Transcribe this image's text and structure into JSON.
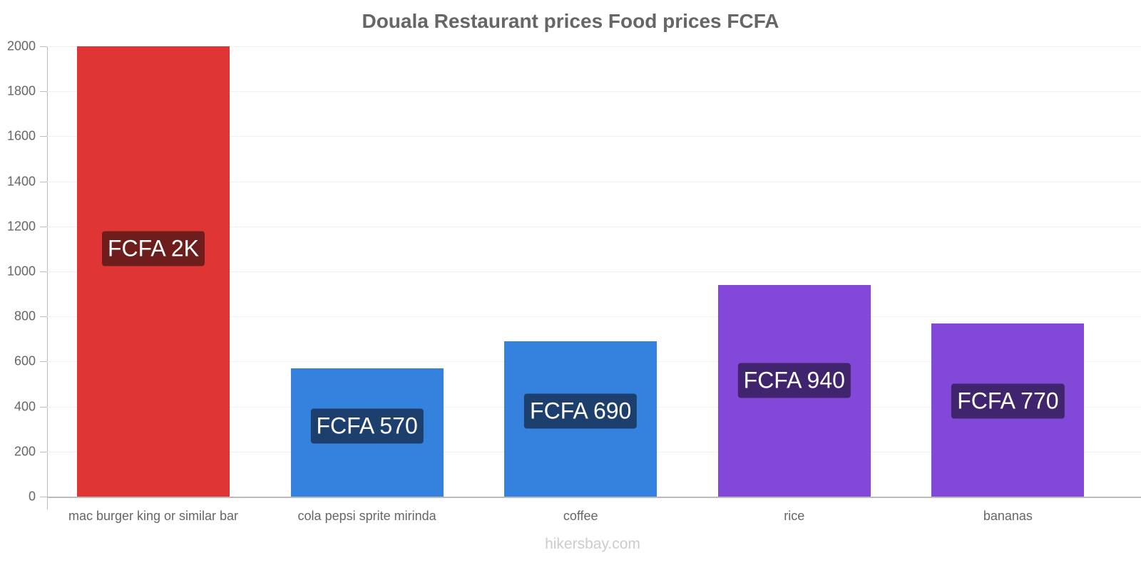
{
  "chart_data": {
    "type": "bar",
    "title": "Douala Restaurant prices Food prices FCFA",
    "xlabel": "",
    "ylabel": "",
    "ylim": [
      0,
      2000
    ],
    "yticks": [
      0,
      200,
      400,
      600,
      800,
      1000,
      1200,
      1400,
      1600,
      1800,
      2000
    ],
    "categories": [
      "mac burger king or similar bar",
      "cola pepsi sprite mirinda",
      "coffee",
      "rice",
      "bananas"
    ],
    "values": [
      2000,
      570,
      690,
      940,
      770
    ],
    "data_labels": [
      "FCFA 2K",
      "FCFA 570",
      "FCFA 690",
      "FCFA 940",
      "FCFA 770"
    ],
    "bar_colors": [
      "#e03535",
      "#3582de",
      "#3582de",
      "#8249d8",
      "#8249d8"
    ],
    "label_bg_colors": [
      "#6e1d1d",
      "#1d3f6e",
      "#1d3f6e",
      "#41246e",
      "#41246e"
    ],
    "grid": true,
    "legend": null
  },
  "watermark": "hikersbay.com"
}
